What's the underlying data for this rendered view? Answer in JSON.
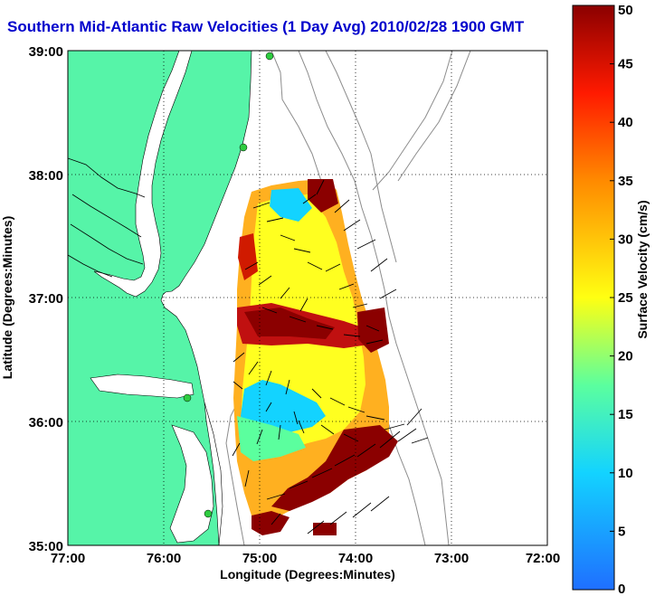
{
  "title": "Southern Mid-Atlantic Raw Velocities (1 Day Avg) 2010/02/28 1900 GMT",
  "x_axis": {
    "label": "Longitude (Degrees:Minutes)",
    "ticks": [
      "77:00",
      "76:00",
      "75:00",
      "74:00",
      "73:00",
      "72:00"
    ]
  },
  "y_axis": {
    "label": "Latitude (Degrees:Minutes)",
    "ticks": [
      "39:00",
      "38:00",
      "37:00",
      "36:00",
      "35:00"
    ]
  },
  "colorbar": {
    "label": "Surface Velocity (cm/s)",
    "range": [
      0,
      50
    ],
    "ticks": [
      "50",
      "45",
      "40",
      "35",
      "30",
      "25",
      "20",
      "15",
      "10",
      "5",
      "0"
    ],
    "colors": [
      "#1f6fff",
      "#13d3ff",
      "#5bff9e",
      "#ffff12",
      "#ff7f00",
      "#ff1a00",
      "#8b0000"
    ]
  },
  "colors": {
    "land": "#56f4a8",
    "water": "#ffffff",
    "bathymetry": "#8c8c8c",
    "station": "#2ecc40",
    "title": "#0000cc"
  }
}
